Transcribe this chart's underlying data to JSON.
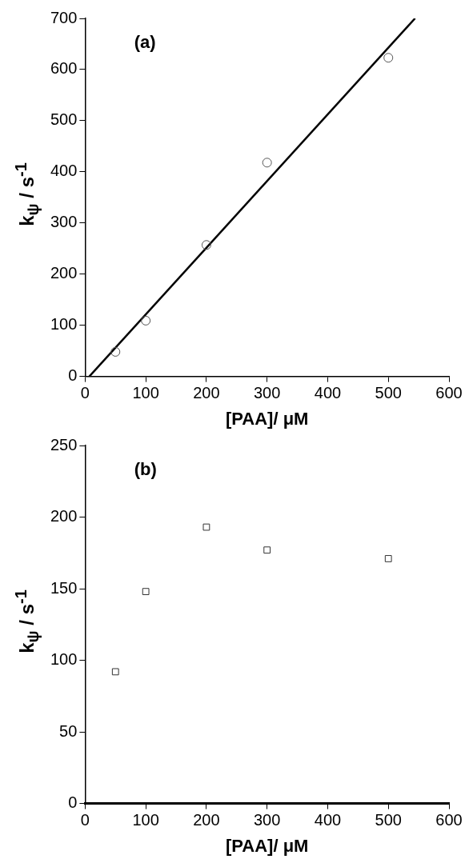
{
  "chart_data": [
    {
      "type": "scatter",
      "xlabel": "[PAA]/ μM",
      "ylabel": "k$_{ψ}$ / s$^{-1}$",
      "annotations": [
        "(a)"
      ],
      "xlim": [
        0,
        600
      ],
      "xticks": [
        0,
        100,
        200,
        300,
        400,
        500,
        600
      ],
      "ylim": [
        0,
        700
      ],
      "yticks": [
        0,
        100,
        200,
        300,
        400,
        500,
        600,
        700
      ],
      "grid": false,
      "legend": false,
      "series": [
        {
          "marker": "circle",
          "color": "#555555",
          "x": [
            50,
            100,
            200,
            300,
            500
          ],
          "values": [
            48,
            109,
            257,
            418,
            623
          ]
        },
        {
          "type": "line",
          "marker": "none",
          "color": "#000000",
          "x": [
            7,
            544
          ],
          "values": [
            0,
            700
          ]
        }
      ]
    },
    {
      "type": "scatter",
      "xlabel": "[PAA]/ μM",
      "ylabel": "k$_{ψ}$ / s$^{-1}$",
      "annotations": [
        "(b)"
      ],
      "xlim": [
        0,
        600
      ],
      "xticks": [
        0,
        100,
        200,
        300,
        400,
        500,
        600
      ],
      "ylim": [
        0,
        250
      ],
      "yticks": [
        0,
        50,
        100,
        150,
        200,
        250
      ],
      "grid": false,
      "legend": false,
      "series": [
        {
          "marker": "square",
          "color": "#333333",
          "x": [
            50,
            100,
            200,
            300,
            500
          ],
          "values": [
            92,
            148,
            193,
            177,
            171
          ]
        }
      ]
    }
  ]
}
